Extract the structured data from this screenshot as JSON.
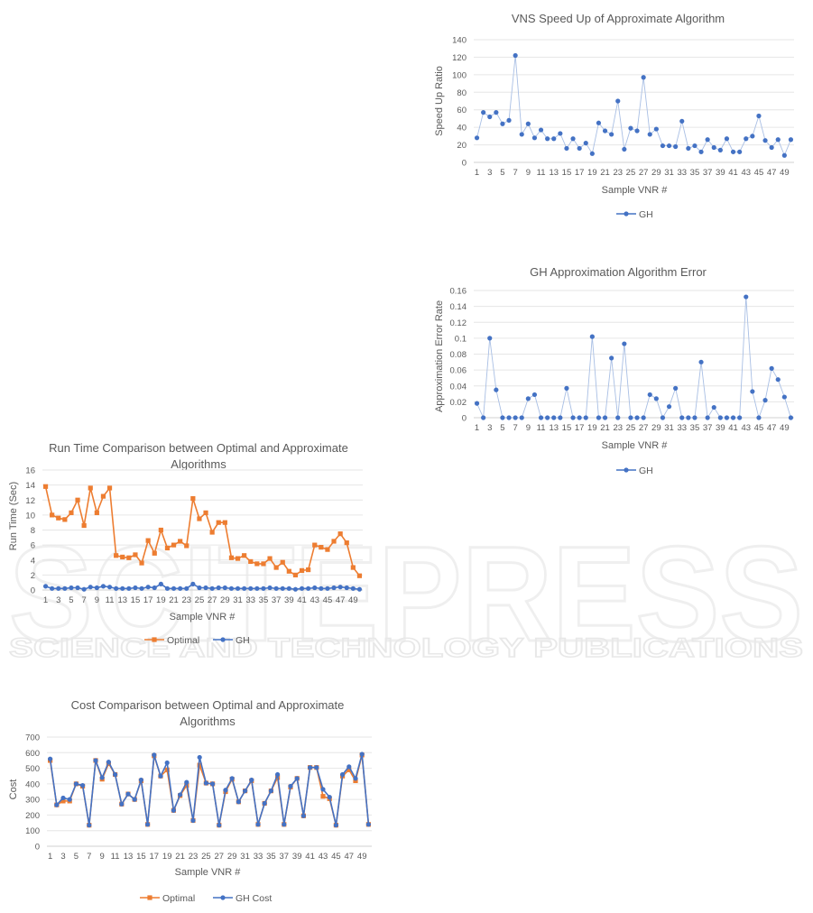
{
  "chart_data": [
    {
      "id": "speedup",
      "type": "line",
      "title": "VNS Speed Up of Approximate Algorithm",
      "xlabel": "Sample VNR #",
      "ylabel": "Speed Up Ratio",
      "ylim": [
        0,
        140
      ],
      "yticks": [
        0,
        20,
        40,
        60,
        80,
        100,
        120,
        140
      ],
      "x": [
        1,
        2,
        3,
        4,
        5,
        6,
        7,
        8,
        9,
        10,
        11,
        12,
        13,
        14,
        15,
        16,
        17,
        18,
        19,
        20,
        21,
        22,
        23,
        24,
        25,
        26,
        27,
        28,
        29,
        30,
        31,
        32,
        33,
        34,
        35,
        36,
        37,
        38,
        39,
        40,
        41,
        42,
        43,
        44,
        45,
        46,
        47,
        48,
        49,
        50
      ],
      "xticks": [
        1,
        3,
        5,
        7,
        9,
        11,
        13,
        15,
        17,
        19,
        21,
        23,
        25,
        27,
        29,
        31,
        33,
        35,
        37,
        39,
        41,
        43,
        45,
        47,
        49
      ],
      "grid": true,
      "legend": "bottom",
      "series": [
        {
          "name": "GH",
          "color": "#4472C4",
          "marker": "circle",
          "line": "#A9BFE4",
          "values": [
            28,
            57,
            52,
            57,
            44,
            48,
            122,
            32,
            44,
            28,
            37,
            27,
            27,
            33,
            16,
            27,
            16,
            22,
            10,
            45,
            36,
            32,
            70,
            15,
            39,
            36,
            97,
            32,
            38,
            19,
            19,
            18,
            47,
            16,
            19,
            12,
            26,
            17,
            14,
            27,
            12,
            12,
            27,
            30,
            53,
            25,
            17,
            26,
            8,
            26
          ]
        }
      ]
    },
    {
      "id": "error",
      "type": "line",
      "title": "GH Approximation Algorithm Error",
      "xlabel": "Sample VNR #",
      "ylabel": "Approximation Error Rate",
      "ylim": [
        0,
        0.16
      ],
      "yticks": [
        0,
        0.02,
        0.04,
        0.06,
        0.08,
        0.1,
        0.12,
        0.14,
        0.16
      ],
      "ytick_labels": [
        "0",
        "0.02",
        "0.04",
        "0.06",
        "0.08",
        "0.1",
        "0.12",
        "0.14",
        "0.16"
      ],
      "x": [
        1,
        2,
        3,
        4,
        5,
        6,
        7,
        8,
        9,
        10,
        11,
        12,
        13,
        14,
        15,
        16,
        17,
        18,
        19,
        20,
        21,
        22,
        23,
        24,
        25,
        26,
        27,
        28,
        29,
        30,
        31,
        32,
        33,
        34,
        35,
        36,
        37,
        38,
        39,
        40,
        41,
        42,
        43,
        44,
        45,
        46,
        47,
        48,
        49,
        50
      ],
      "xticks": [
        1,
        3,
        5,
        7,
        9,
        11,
        13,
        15,
        17,
        19,
        21,
        23,
        25,
        27,
        29,
        31,
        33,
        35,
        37,
        39,
        41,
        43,
        45,
        47,
        49
      ],
      "grid": true,
      "legend": "bottom",
      "series": [
        {
          "name": "GH",
          "color": "#4472C4",
          "marker": "circle",
          "line": "#A9BFE4",
          "values": [
            0.018,
            0,
            0.1,
            0.035,
            0,
            0,
            0,
            0,
            0.024,
            0.029,
            0,
            0,
            0,
            0,
            0.037,
            0,
            0,
            0,
            0.102,
            0,
            0,
            0.075,
            0,
            0.093,
            0,
            0,
            0,
            0.029,
            0.024,
            0,
            0.014,
            0.037,
            0,
            0,
            0,
            0.07,
            0,
            0.013,
            0,
            0,
            0,
            0,
            0.152,
            0.033,
            0,
            0.022,
            0.062,
            0.048,
            0.026,
            0
          ]
        }
      ]
    },
    {
      "id": "runtime",
      "type": "line",
      "title": "Run Time Comparison between Optimal and Approximate Algorithms",
      "title_lines": [
        "Run Time Comparison between Optimal and Approximate",
        "Algorithms"
      ],
      "xlabel": "Sample VNR #",
      "ylabel": "Run Time (Sec)",
      "ylim": [
        0,
        16
      ],
      "yticks": [
        0,
        2,
        4,
        6,
        8,
        10,
        12,
        14,
        16
      ],
      "x": [
        1,
        2,
        3,
        4,
        5,
        6,
        7,
        8,
        9,
        10,
        11,
        12,
        13,
        14,
        15,
        16,
        17,
        18,
        19,
        20,
        21,
        22,
        23,
        24,
        25,
        26,
        27,
        28,
        29,
        30,
        31,
        32,
        33,
        34,
        35,
        36,
        37,
        38,
        39,
        40,
        41,
        42,
        43,
        44,
        45,
        46,
        47,
        48,
        49,
        50
      ],
      "xticks": [
        1,
        3,
        5,
        7,
        9,
        11,
        13,
        15,
        17,
        19,
        21,
        23,
        25,
        27,
        29,
        31,
        33,
        35,
        37,
        39,
        41,
        43,
        45,
        47,
        49
      ],
      "grid": true,
      "legend": "bottom",
      "series": [
        {
          "name": "Optimal",
          "color": "#ED7D31",
          "marker": "square",
          "line": "#ED7D31",
          "values": [
            13.8,
            10.0,
            9.6,
            9.4,
            10.3,
            12.0,
            8.6,
            13.6,
            10.3,
            12.5,
            13.6,
            4.6,
            4.4,
            4.3,
            4.7,
            3.6,
            6.6,
            4.9,
            8.0,
            5.6,
            6.0,
            6.5,
            5.9,
            12.2,
            9.5,
            10.3,
            7.7,
            9.0,
            9.0,
            4.3,
            4.2,
            4.6,
            3.8,
            3.5,
            3.5,
            4.2,
            3.0,
            3.7,
            2.5,
            2.0,
            2.6,
            2.7,
            6.0,
            5.7,
            5.4,
            6.5,
            7.5,
            6.3,
            3.0,
            1.9
          ]
        },
        {
          "name": "GH",
          "color": "#4472C4",
          "marker": "circle",
          "line": "#4472C4",
          "values": [
            0.5,
            0.2,
            0.2,
            0.2,
            0.3,
            0.3,
            0.1,
            0.4,
            0.3,
            0.5,
            0.4,
            0.2,
            0.2,
            0.2,
            0.3,
            0.2,
            0.4,
            0.3,
            0.8,
            0.2,
            0.2,
            0.2,
            0.2,
            0.8,
            0.3,
            0.3,
            0.2,
            0.3,
            0.3,
            0.2,
            0.2,
            0.2,
            0.2,
            0.2,
            0.2,
            0.3,
            0.2,
            0.2,
            0.2,
            0.1,
            0.2,
            0.2,
            0.3,
            0.2,
            0.2,
            0.3,
            0.4,
            0.3,
            0.2,
            0.1
          ]
        }
      ]
    },
    {
      "id": "cost",
      "type": "line",
      "title": "Cost Comparison between Optimal and Approximate Algorithms",
      "title_lines": [
        "Cost Comparison between Optimal and Approximate",
        "Algorithms"
      ],
      "xlabel": "Sample VNR #",
      "ylabel": "Cost",
      "ylim": [
        0,
        700
      ],
      "yticks": [
        0,
        100,
        200,
        300,
        400,
        500,
        600,
        700
      ],
      "x": [
        1,
        2,
        3,
        4,
        5,
        6,
        7,
        8,
        9,
        10,
        11,
        12,
        13,
        14,
        15,
        16,
        17,
        18,
        19,
        20,
        21,
        22,
        23,
        24,
        25,
        26,
        27,
        28,
        29,
        30,
        31,
        32,
        33,
        34,
        35,
        36,
        37,
        38,
        39,
        40,
        41,
        42,
        43,
        44,
        45,
        46,
        47,
        48,
        49,
        50
      ],
      "xticks": [
        1,
        3,
        5,
        7,
        9,
        11,
        13,
        15,
        17,
        19,
        21,
        23,
        25,
        27,
        29,
        31,
        33,
        35,
        37,
        39,
        41,
        43,
        45,
        47,
        49
      ],
      "grid": true,
      "legend": "bottom",
      "series": [
        {
          "name": "Optimal",
          "color": "#ED7D31",
          "marker": "square",
          "line": "#ED7D31",
          "values": [
            550,
            265,
            290,
            290,
            400,
            385,
            135,
            550,
            430,
            530,
            460,
            270,
            335,
            300,
            420,
            140,
            580,
            450,
            490,
            230,
            325,
            390,
            165,
            520,
            405,
            400,
            135,
            350,
            430,
            285,
            355,
            420,
            140,
            275,
            355,
            440,
            140,
            380,
            435,
            195,
            505,
            505,
            320,
            305,
            135,
            450,
            490,
            420,
            585,
            140
          ]
        },
        {
          "name": "GH Cost",
          "color": "#4472C4",
          "marker": "circle",
          "line": "#4472C4",
          "values": [
            560,
            265,
            310,
            300,
            400,
            390,
            135,
            550,
            440,
            540,
            460,
            270,
            335,
            300,
            425,
            140,
            585,
            450,
            535,
            230,
            330,
            410,
            165,
            570,
            405,
            400,
            135,
            360,
            435,
            285,
            355,
            425,
            140,
            275,
            355,
            460,
            140,
            385,
            435,
            195,
            505,
            505,
            365,
            315,
            135,
            460,
            510,
            435,
            590,
            140
          ]
        }
      ]
    }
  ],
  "watermark": {
    "line1": "SCITEPRESS",
    "line2": "SCIENCE AND TECHNOLOGY PUBLICATIONS"
  }
}
